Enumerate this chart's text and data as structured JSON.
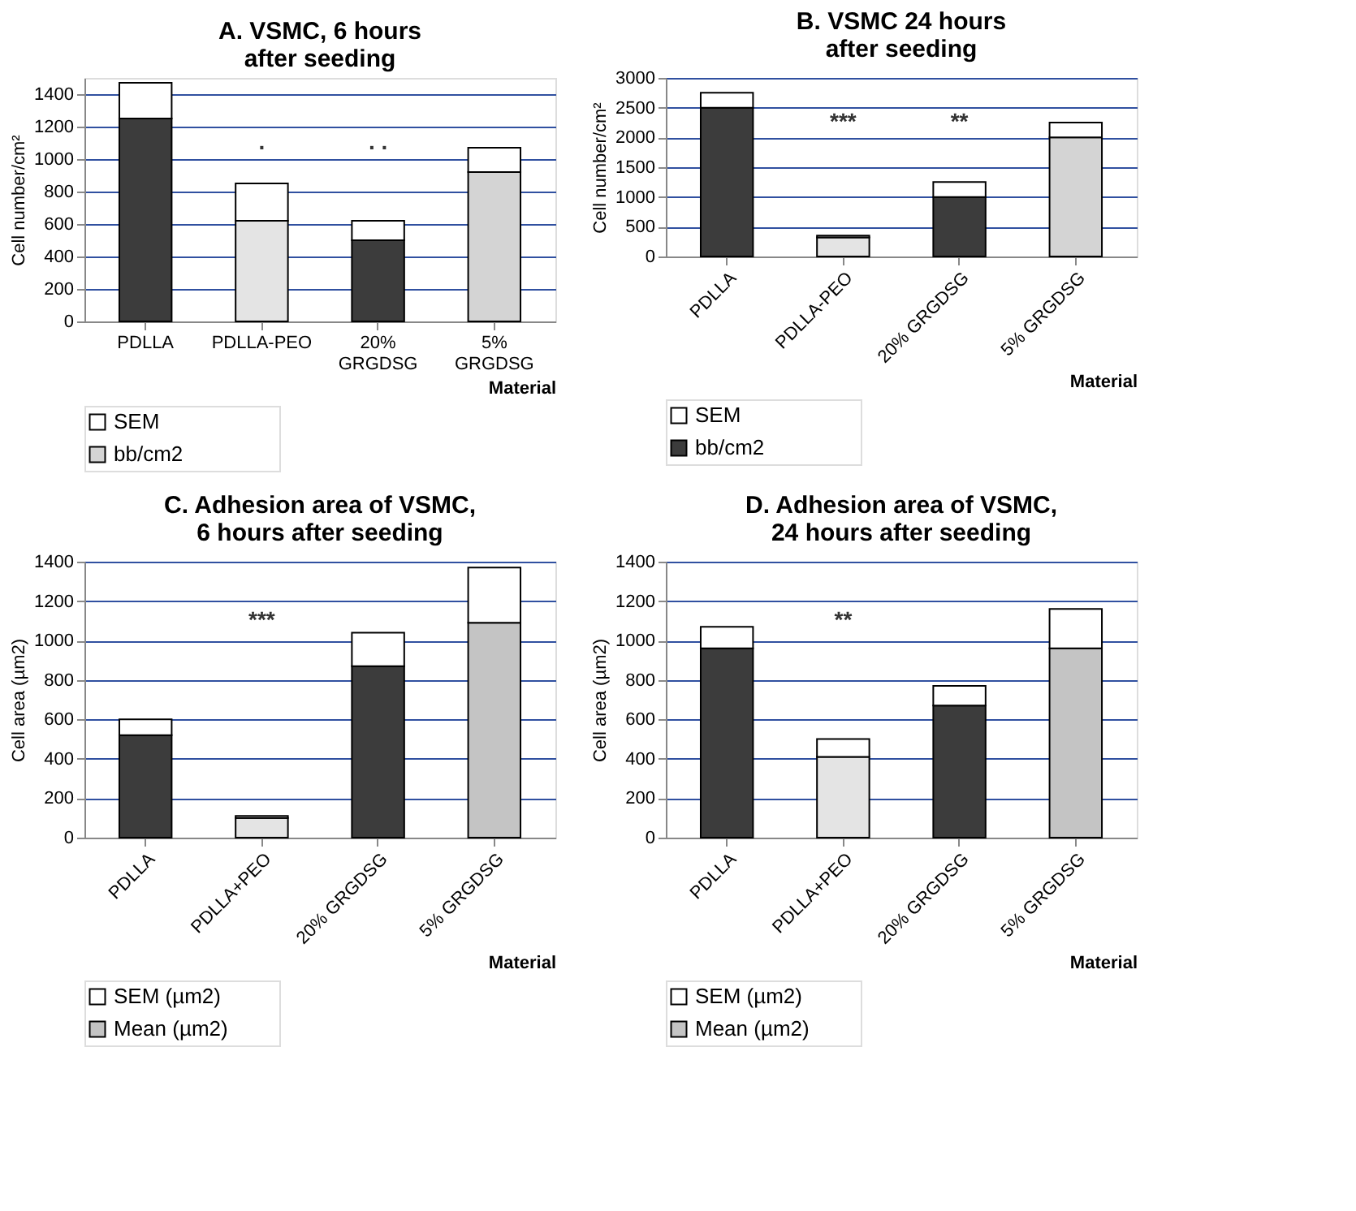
{
  "chart_data": [
    {
      "type": "bar",
      "stacked": true,
      "title": "A.        VSMC, 6 hours\nafter seeding",
      "ylabel": "Cell number/cm²",
      "xlabel": "Material",
      "categories": [
        "PDLLA",
        "PDLLA-PEO",
        "20% GRGDSG",
        "5% GRGDSG"
      ],
      "series": [
        {
          "name": "bb/cm2",
          "color": "#d4d4d4",
          "colors": [
            "#3c3c3c",
            "#e4e4e4",
            "#3c3c3c",
            "#d4d4d4"
          ],
          "values": [
            1250,
            620,
            500,
            920
          ]
        },
        {
          "name": "SEM",
          "color": "#ffffff",
          "values": [
            220,
            230,
            120,
            150
          ]
        }
      ],
      "ylim": [
        0,
        1500
      ],
      "yticks": [
        0,
        200,
        400,
        600,
        800,
        1000,
        1200,
        1400
      ],
      "grid": "y",
      "legend": "bottom left",
      "annotations": [
        ".",
        ". ."
      ]
    },
    {
      "type": "bar",
      "stacked": true,
      "title": "B.        VSMC 24 hours\nafter seeding",
      "ylabel": "Cell number/cm²",
      "xlabel": "Material",
      "categories": [
        "PDLLA",
        "PDLLA-PEO",
        "20% GRGDSG",
        "5% GRGDSG"
      ],
      "series": [
        {
          "name": "bb/cm2",
          "color": "#3c3c3c",
          "colors": [
            "#3c3c3c",
            "#e4e4e4",
            "#3c3c3c",
            "#d4d4d4"
          ],
          "values": [
            2500,
            320,
            1000,
            2000
          ]
        },
        {
          "name": "SEM",
          "color": "#ffffff",
          "values": [
            250,
            30,
            250,
            250
          ]
        }
      ],
      "ylim": [
        0,
        3000
      ],
      "yticks": [
        0,
        500,
        1000,
        1500,
        2000,
        2500,
        3000
      ],
      "grid": "y",
      "legend": "bottom left",
      "annotations": [
        "***",
        "**"
      ]
    },
    {
      "type": "bar",
      "stacked": true,
      "title": "C.          Adhesion area of VSMC,\n6 hours after seeding",
      "ylabel": "Cell area (µm2)",
      "xlabel": "Material",
      "categories": [
        "PDLLA",
        "PDLLA+PEO",
        "20% GRGDSG",
        "5% GRGDSG"
      ],
      "series": [
        {
          "name": "Mean (µm2)",
          "color": "#c4c4c4",
          "colors": [
            "#3c3c3c",
            "#e4e4e4",
            "#3c3c3c",
            "#c4c4c4"
          ],
          "values": [
            520,
            100,
            870,
            1090
          ]
        },
        {
          "name": "SEM (µm2)",
          "color": "#ffffff",
          "values": [
            80,
            10,
            170,
            280
          ]
        }
      ],
      "ylim": [
        0,
        1400
      ],
      "yticks": [
        0,
        200,
        400,
        600,
        800,
        1000,
        1200,
        1400
      ],
      "grid": "y",
      "legend": "bottom left",
      "annotations": [
        "***"
      ]
    },
    {
      "type": "bar",
      "stacked": true,
      "title": "D.          Adhesion area of VSMC,\n24 hours after seeding",
      "ylabel": "Cell area (µm2)",
      "xlabel": "Material",
      "categories": [
        "PDLLA",
        "PDLLA+PEO",
        "20% GRGDSG",
        "5% GRGDSG"
      ],
      "series": [
        {
          "name": "Mean (µm2)",
          "color": "#c4c4c4",
          "colors": [
            "#3c3c3c",
            "#e4e4e4",
            "#3c3c3c",
            "#c4c4c4"
          ],
          "values": [
            960,
            410,
            670,
            960
          ]
        },
        {
          "name": "SEM (µm2)",
          "color": "#ffffff",
          "values": [
            110,
            90,
            100,
            200
          ]
        }
      ],
      "ylim": [
        0,
        1400
      ],
      "yticks": [
        0,
        200,
        400,
        600,
        800,
        1000,
        1200,
        1400
      ],
      "grid": "y",
      "legend": "bottom left",
      "annotations": [
        "**"
      ]
    }
  ]
}
